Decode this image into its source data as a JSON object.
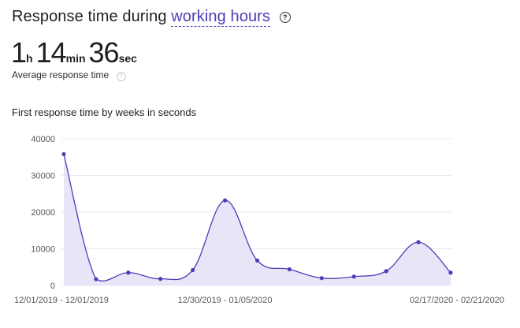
{
  "header": {
    "title_prefix": "Response time during",
    "title_link": "working hours",
    "help_glyph": "?"
  },
  "metric": {
    "hours": "1",
    "hours_unit": "h",
    "minutes": "14",
    "minutes_unit": "min",
    "seconds": "36",
    "seconds_unit": "sec",
    "label": "Average response time",
    "help_glyph": "?"
  },
  "chart_title": "First response time by weeks in seconds",
  "colors": {
    "accent": "#4a3fb5",
    "fill": "#e7e5f7",
    "grid": "#e9e9ee"
  },
  "chart_data": {
    "type": "area",
    "ylim": [
      0,
      40000
    ],
    "yticks": [
      0,
      10000,
      20000,
      30000,
      40000
    ],
    "x_tick_labels": [
      {
        "index": 0,
        "label": "12/01/2019 - 12/01/2019"
      },
      {
        "index": 5,
        "label": "12/30/2019 - 01/05/2020"
      },
      {
        "index": 12,
        "label": "02/17/2020 - 02/21/2020"
      }
    ],
    "series": [
      {
        "values": [
          35800,
          1700,
          3500,
          1800,
          4200,
          23200,
          6800,
          4400,
          2000,
          2400,
          3900,
          11800,
          3500
        ]
      }
    ]
  }
}
